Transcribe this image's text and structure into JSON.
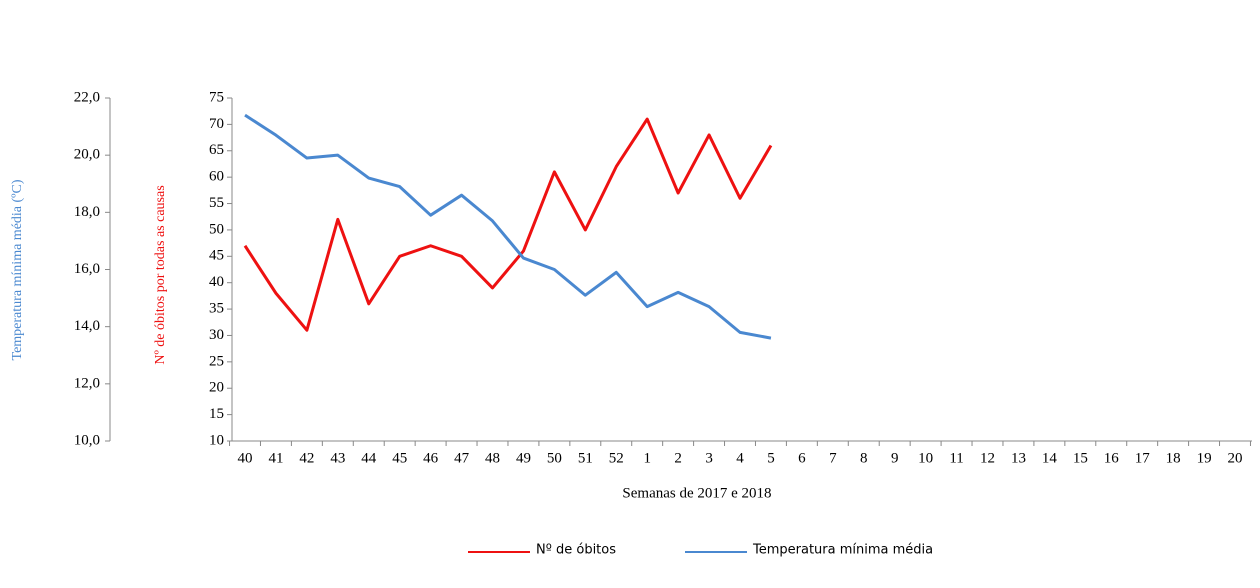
{
  "chart_data": {
    "type": "line",
    "x_label": "Semanas de 2017 e 2018",
    "y_label": "Nº de óbitos por todas as causas",
    "y2_label": "Temperatura mínima média (ºC)",
    "categories": [
      "40",
      "41",
      "42",
      "43",
      "44",
      "45",
      "46",
      "47",
      "48",
      "49",
      "50",
      "51",
      "52",
      "1",
      "2",
      "3",
      "4",
      "5",
      "6",
      "7",
      "8",
      "9",
      "10",
      "11",
      "12",
      "13",
      "14",
      "15",
      "16",
      "17",
      "18",
      "19",
      "20"
    ],
    "series": [
      {
        "name": "Nº de óbitos",
        "color": "#ee1111",
        "values": [
          47,
          38,
          31,
          52,
          36,
          45,
          47,
          45,
          39,
          46,
          61,
          50,
          62,
          71,
          57,
          68,
          56,
          66,
          null,
          null,
          null,
          null,
          null,
          null,
          null,
          null,
          null,
          null,
          null,
          null,
          null,
          null,
          null
        ]
      },
      {
        "name": "Temperatura mínima média",
        "color": "#4a88d0",
        "axis": "y2",
        "values": [
          21.4,
          20.7,
          19.9,
          20.0,
          19.2,
          18.9,
          17.9,
          18.6,
          17.7,
          16.4,
          16.0,
          15.1,
          15.9,
          14.7,
          15.2,
          14.7,
          13.8,
          13.6,
          null,
          null,
          null,
          null,
          null,
          null,
          null,
          null,
          null,
          null,
          null,
          null,
          null,
          null,
          null
        ]
      }
    ],
    "ylim": [
      10,
      75
    ],
    "yticks": [
      10,
      15,
      20,
      25,
      30,
      35,
      40,
      45,
      50,
      55,
      60,
      65,
      70,
      75
    ],
    "y2lim": [
      10,
      22
    ],
    "y2ticks": [
      {
        "value": 10,
        "label": "10,0"
      },
      {
        "value": 12,
        "label": "12,0"
      },
      {
        "value": 14,
        "label": "14,0"
      },
      {
        "value": 16,
        "label": "16,0"
      },
      {
        "value": 18,
        "label": "18,0"
      },
      {
        "value": 20,
        "label": "20,0"
      },
      {
        "value": 22,
        "label": "22,0"
      }
    ],
    "legend": "bottom"
  }
}
